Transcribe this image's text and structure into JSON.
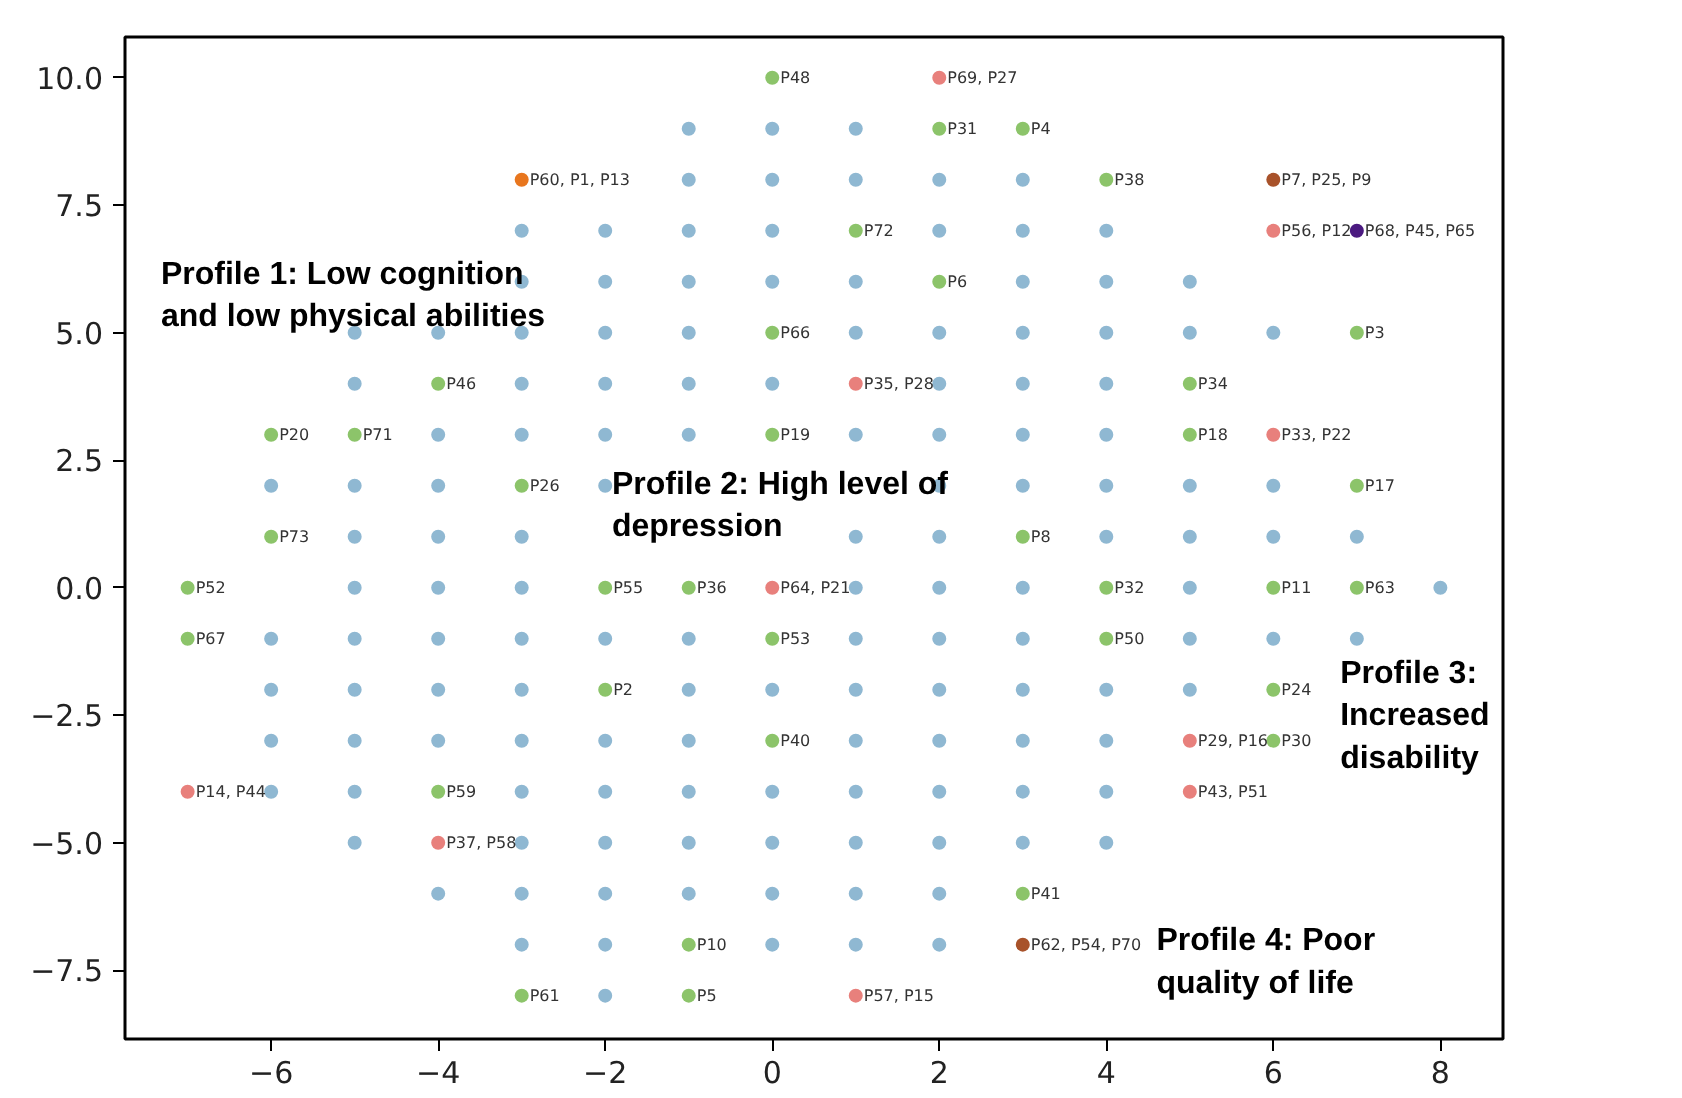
{
  "chart_data": {
    "type": "scatter",
    "marker": "circle",
    "grid": false,
    "xlim": [
      -7.75,
      8.75
    ],
    "ylim": [
      -8.85,
      10.8
    ],
    "xticks": [
      {
        "value": -6,
        "label": "−6"
      },
      {
        "value": -4,
        "label": "−4"
      },
      {
        "value": -2,
        "label": "−2"
      },
      0,
      2,
      4,
      6,
      8
    ],
    "yticks": [
      {
        "value": -7.5,
        "label": "−7.5"
      },
      {
        "value": -5,
        "label": "−5.0"
      },
      {
        "value": -2.5,
        "label": "−2.5"
      },
      {
        "value": 0,
        "label": "0.0"
      },
      {
        "value": 2.5,
        "label": "2.5"
      },
      {
        "value": 5,
        "label": "5.0"
      },
      {
        "value": 7.5,
        "label": "7.5"
      },
      {
        "value": 10,
        "label": "10.0"
      }
    ],
    "annotations": [
      "Profile 1: Low cognition\nand low physical abilities",
      "Profile 2: High level of\ndepression",
      "Profile 3:\nIncreased\ndisability",
      "Profile 4: Poor\nquality of life"
    ],
    "series": [
      {
        "color": "#8fb8d2",
        "x": [
          -1,
          0,
          1,
          -1,
          0,
          1,
          2,
          3,
          -3,
          -2,
          -1,
          0,
          2,
          3,
          4,
          -3,
          -2,
          -1,
          0,
          1,
          3,
          4,
          5,
          -5,
          -4,
          -3,
          -2,
          -1,
          1,
          2,
          3,
          4,
          5,
          6,
          -5,
          -3,
          -2,
          -1,
          0,
          2,
          3,
          4,
          -4,
          -3,
          -2,
          -1,
          1,
          2,
          3,
          4,
          -6,
          -5,
          -4,
          -2,
          2,
          3,
          4,
          5,
          6,
          -5,
          -4,
          -3,
          1,
          2,
          4,
          5,
          6,
          7,
          -5,
          -4,
          -3,
          1,
          2,
          3,
          5,
          8,
          -6,
          -5,
          -4,
          -3,
          -2,
          -1,
          1,
          2,
          3,
          5,
          6,
          7,
          -6,
          -5,
          -4,
          -3,
          -1,
          0,
          1,
          2,
          3,
          4,
          5,
          -6,
          -5,
          -4,
          -3,
          -2,
          -1,
          1,
          2,
          3,
          4,
          -6,
          -5,
          -3,
          -2,
          -1,
          0,
          1,
          2,
          3,
          4,
          -5,
          -3,
          -2,
          -1,
          0,
          1,
          2,
          3,
          4,
          -4,
          -3,
          -2,
          -1,
          0,
          1,
          2,
          -3,
          -2,
          0,
          1,
          2,
          -2
        ],
        "values": [
          9,
          9,
          9,
          8,
          8,
          8,
          8,
          8,
          7,
          7,
          7,
          7,
          7,
          7,
          7,
          6,
          6,
          6,
          6,
          6,
          6,
          6,
          6,
          5,
          5,
          5,
          5,
          5,
          5,
          5,
          5,
          5,
          5,
          5,
          4,
          4,
          4,
          4,
          4,
          4,
          4,
          4,
          3,
          3,
          3,
          3,
          3,
          3,
          3,
          3,
          2,
          2,
          2,
          2,
          2,
          2,
          2,
          2,
          2,
          1,
          1,
          1,
          1,
          1,
          1,
          1,
          1,
          1,
          0,
          0,
          0,
          0,
          0,
          0,
          0,
          0,
          -1,
          -1,
          -1,
          -1,
          -1,
          -1,
          -1,
          -1,
          -1,
          -1,
          -1,
          -1,
          -2,
          -2,
          -2,
          -2,
          -2,
          -2,
          -2,
          -2,
          -2,
          -2,
          -2,
          -3,
          -3,
          -3,
          -3,
          -3,
          -3,
          -3,
          -3,
          -3,
          -3,
          -4,
          -4,
          -4,
          -4,
          -4,
          -4,
          -4,
          -4,
          -4,
          -4,
          -5,
          -5,
          -5,
          -5,
          -5,
          -5,
          -5,
          -5,
          -5,
          -6,
          -6,
          -6,
          -6,
          -6,
          -6,
          -6,
          -7,
          -7,
          -7,
          -7,
          -7,
          -8
        ]
      },
      {
        "color": "#8cc46a",
        "x": [
          0,
          2,
          3,
          4,
          1,
          2,
          0,
          7,
          -4,
          5,
          -6,
          -5,
          0,
          5,
          -3,
          7,
          -6,
          3,
          -7,
          -2,
          -1,
          4,
          6,
          7,
          -7,
          0,
          4,
          -2,
          6,
          0,
          6,
          -4,
          3,
          -1,
          -3,
          -1
        ],
        "values": [
          10,
          9,
          9,
          8,
          7,
          6,
          5,
          5,
          4,
          4,
          3,
          3,
          3,
          3,
          2,
          2,
          1,
          1,
          0,
          0,
          0,
          0,
          0,
          0,
          -1,
          -1,
          -1,
          -2,
          -2,
          -3,
          -3,
          -4,
          -6,
          -7,
          -8,
          -8
        ],
        "value_labels": [
          "P48",
          "P31",
          "P4",
          "P38",
          "P72",
          "P6",
          "P66",
          "P3",
          "P46",
          "P34",
          "P20",
          "P71",
          "P19",
          "P18",
          "P26",
          "P17",
          "P73",
          "P8",
          "P52",
          "P55",
          "P36",
          "P32",
          "P11",
          "P63",
          "P67",
          "P53",
          "P50",
          "P2",
          "P24",
          "P40",
          "P30",
          "P59",
          "P41",
          "P10",
          "P61",
          "P5"
        ]
      },
      {
        "color": "#e8807c",
        "x": [
          2,
          6,
          1,
          6,
          0,
          5,
          -7,
          5,
          -4,
          1
        ],
        "values": [
          10,
          7,
          4,
          3,
          0,
          -3,
          -4,
          -4,
          -5,
          -8
        ],
        "value_labels": [
          "P69, P27",
          "P56, P12",
          "P35, P28",
          "P33, P22",
          "P64, P21",
          "P29, P16",
          "P14, P44",
          "P43, P51",
          "P37, P58",
          "P57, P15"
        ]
      },
      {
        "color": "#e8761e",
        "x": [
          -3
        ],
        "values": [
          8
        ],
        "value_labels": [
          "P60, P1, P13"
        ]
      },
      {
        "color": "#a8522a",
        "x": [
          6,
          3
        ],
        "values": [
          8,
          -7
        ],
        "value_labels": [
          "P7, P25, P9",
          "P62, P54, P70"
        ]
      },
      {
        "color": "#4b1a80",
        "x": [
          7
        ],
        "values": [
          7
        ],
        "value_labels": [
          "P68, P45, P65"
        ]
      }
    ]
  }
}
